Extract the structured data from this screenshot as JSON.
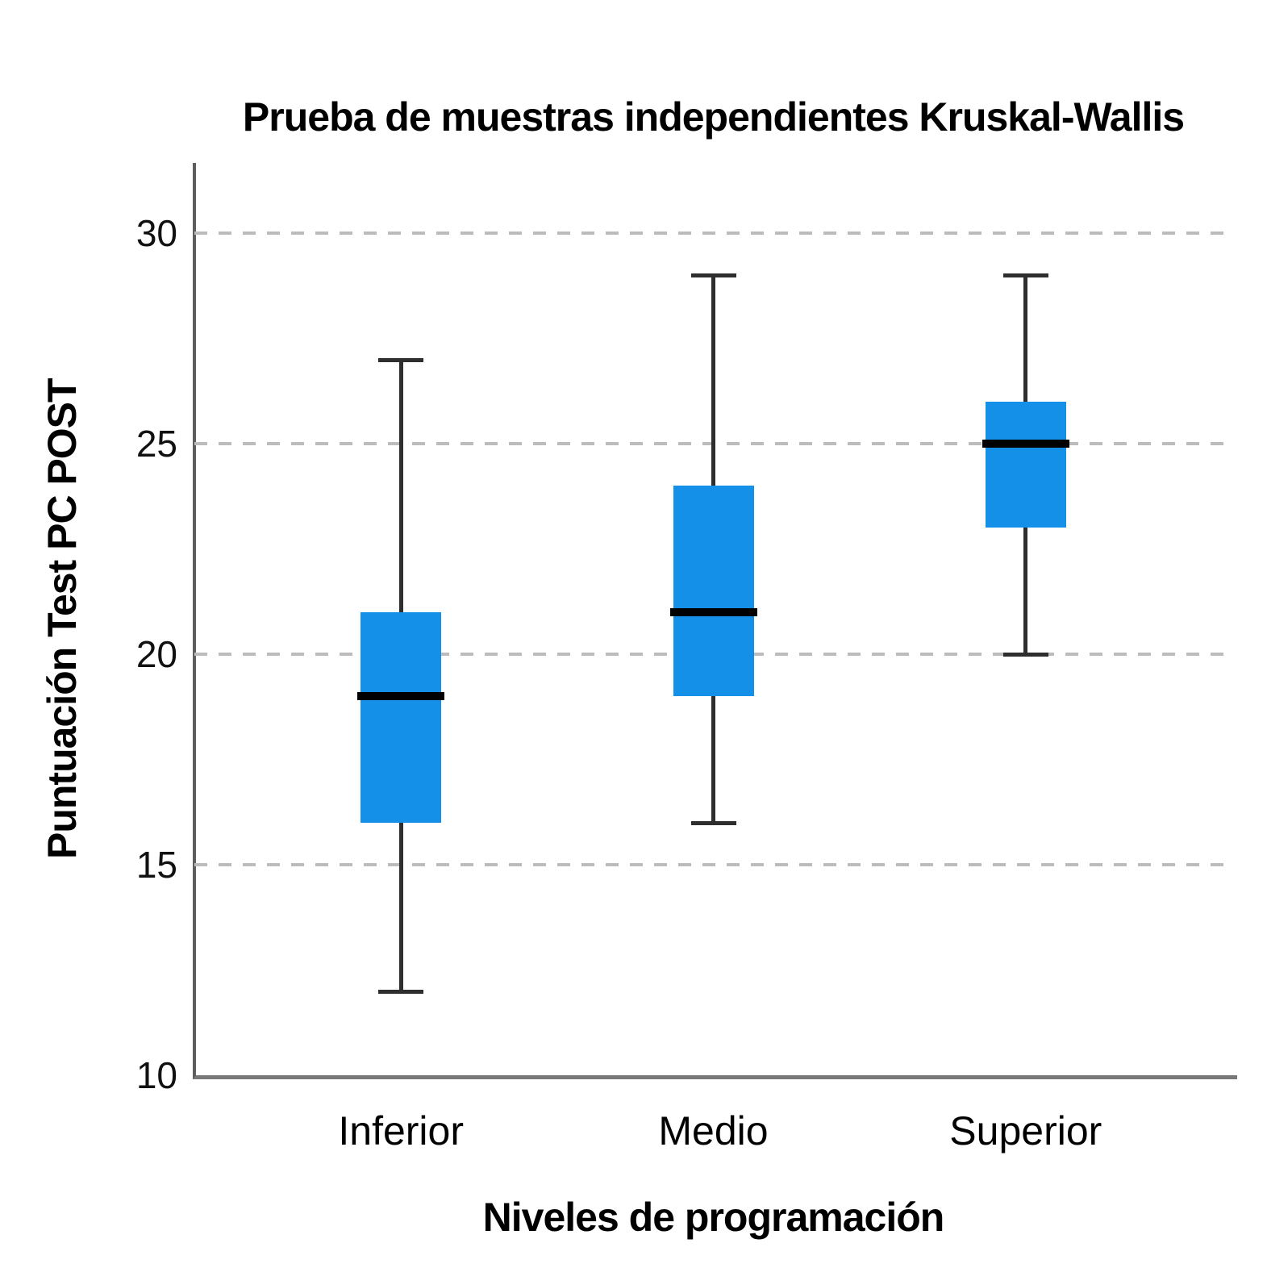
{
  "chart_data": {
    "type": "boxplot",
    "title": "Prueba de muestras independientes Kruskal-Wallis",
    "xlabel": "Niveles de programación",
    "ylabel": "Puntuación Test PC POST",
    "categories": [
      "Inferior",
      "Medio",
      "Superior"
    ],
    "yticks": [
      10,
      15,
      20,
      25,
      30
    ],
    "ylim": [
      10,
      31.7
    ],
    "grid": "horizontal dashed gridlines at 15, 20, 25, 30",
    "legend_position": "none",
    "series": [
      {
        "category": "Inferior",
        "min": 12,
        "q1": 16,
        "median": 19,
        "q3": 21,
        "max": 27
      },
      {
        "category": "Medio",
        "min": 16,
        "q1": 19,
        "median": 21,
        "q3": 24,
        "max": 29
      },
      {
        "category": "Superior",
        "min": 20,
        "q1": 23,
        "median": 25,
        "q3": 26,
        "max": 29
      }
    ],
    "colors": {
      "box_fill": "#1590E8",
      "median_line": "#000000",
      "whisker": "#2E2E2E",
      "gridline": "#BCBCBC",
      "axis_line": "#6E6E6E",
      "text": "#000000",
      "background": "#FFFFFF"
    }
  }
}
